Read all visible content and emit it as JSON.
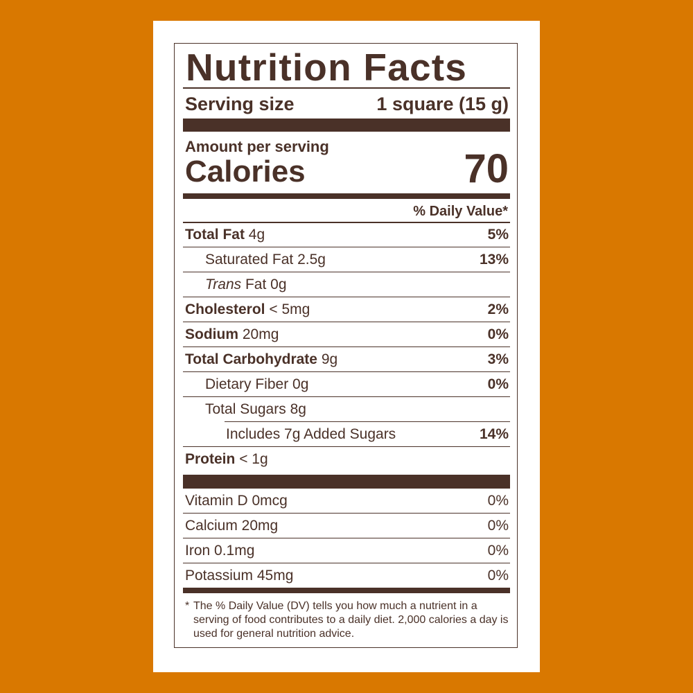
{
  "colors": {
    "background": "#D97800",
    "ink": "#4A3128",
    "card": "#FFFFFF"
  },
  "title": "Nutrition Facts",
  "serving": {
    "label": "Serving size",
    "value": "1 square (15 g)"
  },
  "amount_per_serving": "Amount per serving",
  "calories": {
    "label": "Calories",
    "value": "70"
  },
  "dv_header": "% Daily Value*",
  "nutrients": [
    {
      "name": "Total Fat",
      "amount": "4g",
      "dv": "5%"
    },
    {
      "name": "Saturated Fat",
      "amount": "2.5g",
      "dv": "13%"
    },
    {
      "name_italic": "Trans",
      "name": "Fat",
      "amount": "0g",
      "dv": ""
    },
    {
      "name": "Cholesterol",
      "amount": "< 5mg",
      "dv": "2%"
    },
    {
      "name": "Sodium",
      "amount": "20mg",
      "dv": "0%"
    },
    {
      "name": "Total Carbohydrate",
      "amount": "9g",
      "dv": "3%"
    },
    {
      "name": "Dietary Fiber",
      "amount": "0g",
      "dv": "0%"
    },
    {
      "name": "Total Sugars",
      "amount": "8g",
      "dv": ""
    },
    {
      "name": "Includes 7g Added Sugars",
      "amount": "",
      "dv": "14%"
    },
    {
      "name": "Protein",
      "amount": "< 1g",
      "dv": ""
    }
  ],
  "vitamins": [
    {
      "name": "Vitamin D 0mcg",
      "dv": "0%"
    },
    {
      "name": "Calcium 20mg",
      "dv": "0%"
    },
    {
      "name": "Iron 0.1mg",
      "dv": "0%"
    },
    {
      "name": "Potassium 45mg",
      "dv": "0%"
    }
  ],
  "footnote": {
    "star": "*",
    "text": "The % Daily Value (DV) tells you how much a nutrient in a serving of food contributes to a daily diet. 2,000 calories a day is used for general nutrition advice."
  }
}
